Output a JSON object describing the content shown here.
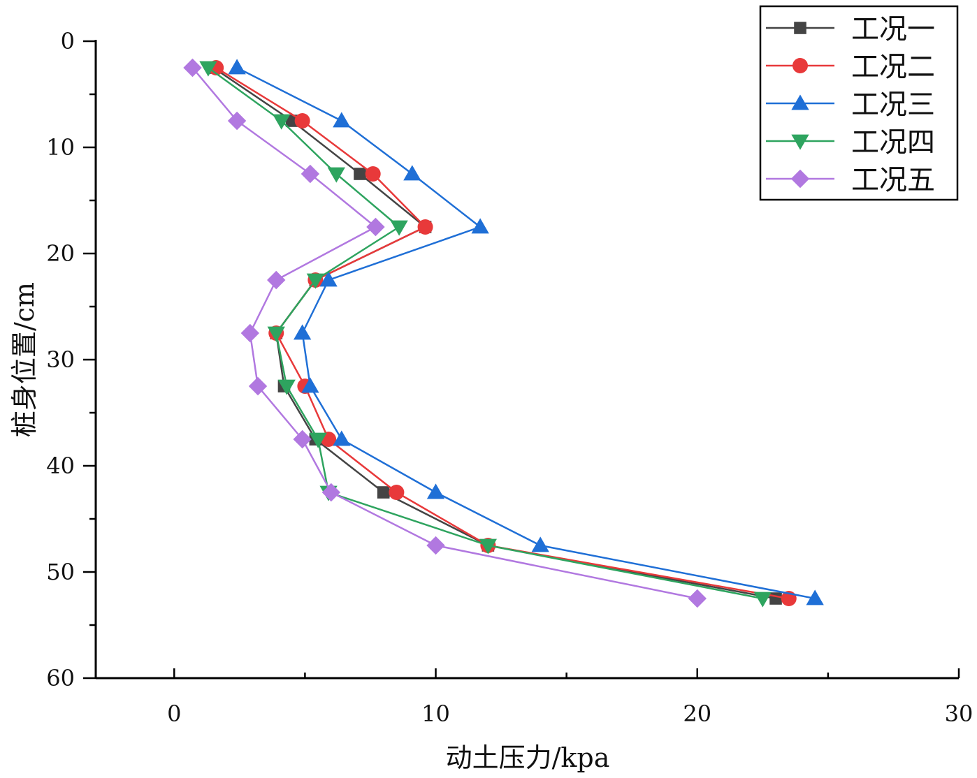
{
  "chart_data": {
    "type": "line",
    "title": "",
    "xlabel": "动土压力/kpa",
    "ylabel": "桩身位置/cm",
    "xlim": [
      -3,
      30
    ],
    "ylim": [
      60,
      0
    ],
    "x_ticks": [
      0,
      10,
      20,
      30
    ],
    "y_ticks": [
      0,
      10,
      20,
      30,
      40,
      50,
      60
    ],
    "x_tick_labels": [
      "0",
      "10",
      "20",
      "30"
    ],
    "y_tick_labels": [
      "0",
      "10",
      "20",
      "30",
      "40",
      "50",
      "60"
    ],
    "y_inverted": true,
    "grid": false,
    "legend_position": "top-right",
    "depths": [
      2.5,
      7.5,
      12.5,
      17.5,
      22.5,
      27.5,
      32.5,
      37.5,
      42.5,
      47.5,
      52.5
    ],
    "series": [
      {
        "name": "工况一",
        "color": "#444444",
        "marker": "square",
        "values": [
          1.5,
          4.5,
          7.1,
          9.6,
          5.4,
          3.9,
          4.2,
          5.4,
          8.0,
          12.0,
          23.0
        ]
      },
      {
        "name": "工况二",
        "color": "#e8393a",
        "marker": "circle",
        "values": [
          1.6,
          4.9,
          7.6,
          9.6,
          5.4,
          3.9,
          5.0,
          5.9,
          8.5,
          12.0,
          23.5
        ]
      },
      {
        "name": "工况三",
        "color": "#1f6fd6",
        "marker": "triangle-up",
        "values": [
          2.4,
          6.4,
          9.1,
          11.7,
          5.9,
          4.9,
          5.2,
          6.4,
          10.0,
          14.0,
          24.5
        ]
      },
      {
        "name": "工况四",
        "color": "#2ea45f",
        "marker": "triangle-down",
        "values": [
          1.3,
          4.1,
          6.2,
          8.6,
          5.4,
          3.9,
          4.3,
          5.5,
          5.9,
          12.0,
          22.5
        ]
      },
      {
        "name": "工况五",
        "color": "#b178e0",
        "marker": "diamond",
        "values": [
          0.7,
          2.4,
          5.2,
          7.7,
          3.9,
          2.9,
          3.2,
          4.9,
          6.0,
          10.0,
          20.0
        ]
      }
    ]
  }
}
